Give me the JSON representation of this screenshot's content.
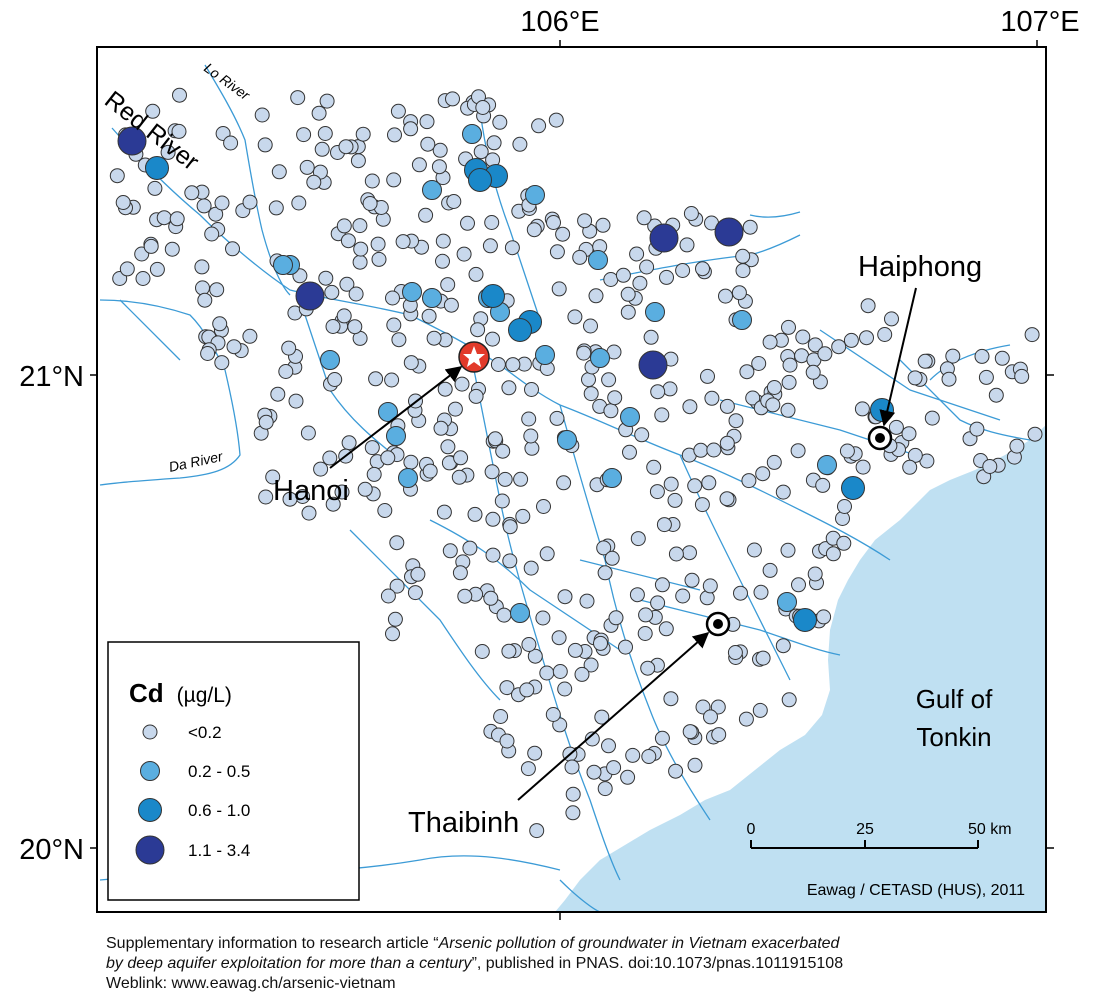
{
  "axes": {
    "lon_ticks": [
      "106°E",
      "107°E"
    ],
    "lat_ticks": [
      "21°N",
      "20°N"
    ]
  },
  "rivers": [
    "Red River",
    "Lo River",
    "Da River"
  ],
  "places": {
    "hanoi": "Hanoi",
    "haiphong": "Haiphong",
    "thaibinh": "Thaibinh",
    "gulf": [
      "Gulf of",
      "Tonkin"
    ]
  },
  "legend": {
    "element": "Cd",
    "unit": "(µg/L)",
    "classes": [
      {
        "label": "<0.2",
        "color": "#c8d8ec"
      },
      {
        "label": "0.2 - 0.5",
        "color": "#5aaee0"
      },
      {
        "label": "0.6 - 1.0",
        "color": "#1a88c9"
      },
      {
        "label": "1.1 - 3.4",
        "color": "#2b3a95"
      }
    ]
  },
  "scalebar": {
    "labels": [
      "0",
      "25",
      "50 km"
    ]
  },
  "credit": "Eawag / CETASD (HUS), 2011",
  "caption": {
    "line1_prefix": "Supplementary information to research article “",
    "line1_title": "Arsenic pollution of groundwater in Vietnam exacerbated",
    "line2_title": "by deep aquifer exploitation for more than a century",
    "line2_suffix": "”, published in PNAS. doi:10.1073/pnas.1011915108",
    "line3": "Weblink: www.eawag.ch/arsenic-vietnam"
  },
  "colors": {
    "sea": "#bfe0f2",
    "river": "#3c9bd6",
    "frame": "#000000",
    "hanoi_marker": "#e23a2a"
  }
}
